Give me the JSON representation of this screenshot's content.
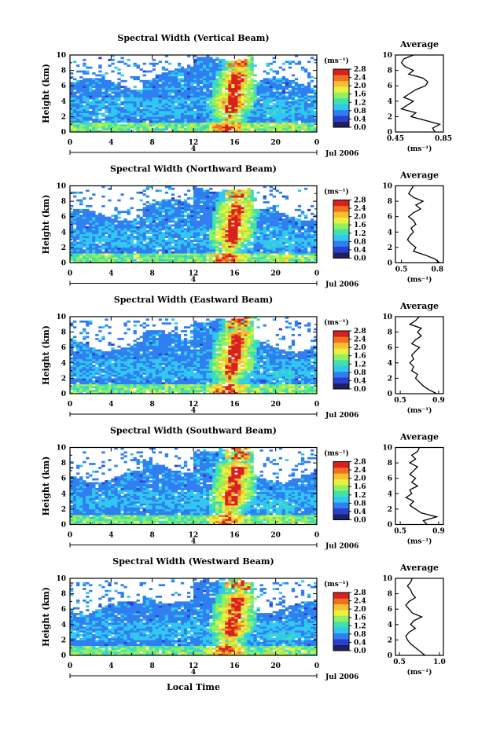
{
  "chart_data": {
    "type": "heatmap",
    "x_label": "Local Time",
    "x_ticks": [
      "0",
      "4",
      "8",
      "12",
      "16",
      "20",
      "0"
    ],
    "x_range": [
      0,
      24
    ],
    "day_marker": "4",
    "date_label": "Jul 2006",
    "y_label": "Height (km)",
    "y_ticks": [
      "0",
      "2",
      "4",
      "6",
      "8",
      "10"
    ],
    "y_range": [
      0,
      10
    ],
    "colorbar": {
      "unit": "(ms⁻¹)",
      "ticks": [
        "2.8",
        "2.4",
        "2.0",
        "1.6",
        "1.2",
        "0.8",
        "0.4",
        "0.0"
      ],
      "range": [
        0,
        2.8
      ],
      "colors": [
        "#202060",
        "#2a3fd0",
        "#2f7ff0",
        "#30c8f0",
        "#40e0b0",
        "#90f060",
        "#e8f040",
        "#f8c030",
        "#f07020",
        "#d82020"
      ]
    },
    "profile": {
      "title": "Average",
      "x_label": "(ms⁻¹)",
      "y_ticks": [
        "0",
        "2",
        "4",
        "6",
        "8",
        "10"
      ]
    },
    "panels": [
      {
        "title": "Spectral Width (Vertical Beam)",
        "profile_xticks": [
          "0.45",
          "0.85"
        ],
        "profile_xrange": [
          0.45,
          0.85
        ],
        "profile": [
          0.78,
          0.76,
          0.82,
          0.7,
          0.58,
          0.62,
          0.5,
          0.55,
          0.6,
          0.52,
          0.57,
          0.62,
          0.7,
          0.72,
          0.68,
          0.56,
          0.6,
          0.53,
          0.5,
          0.52,
          0.6
        ]
      },
      {
        "title": "Spectral Width (Northward Beam)",
        "profile_xticks": [
          "0.5",
          "0.8"
        ],
        "profile_xrange": [
          0.45,
          0.85
        ],
        "profile": [
          0.82,
          0.78,
          0.7,
          0.6,
          0.62,
          0.58,
          0.55,
          0.57,
          0.6,
          0.58,
          0.62,
          0.6,
          0.56,
          0.6,
          0.66,
          0.62,
          0.68,
          0.6,
          0.56,
          0.58,
          0.6
        ]
      },
      {
        "title": "Spectral Width (Eastward Beam)",
        "profile_xticks": [
          "0.5",
          "0.9"
        ],
        "profile_xrange": [
          0.45,
          0.95
        ],
        "profile": [
          0.88,
          0.8,
          0.74,
          0.7,
          0.66,
          0.68,
          0.62,
          0.64,
          0.6,
          0.64,
          0.62,
          0.66,
          0.7,
          0.62,
          0.66,
          0.72,
          0.68,
          0.72,
          0.6,
          0.66,
          0.7
        ]
      },
      {
        "title": "Spectral Width (Southward Beam)",
        "profile_xticks": [
          "0.5",
          "0.9"
        ],
        "profile_xrange": [
          0.45,
          0.95
        ],
        "profile": [
          0.78,
          0.74,
          0.88,
          0.72,
          0.66,
          0.6,
          0.64,
          0.56,
          0.62,
          0.6,
          0.68,
          0.62,
          0.66,
          0.6,
          0.64,
          0.68,
          0.6,
          0.66,
          0.62,
          0.68,
          0.7
        ]
      },
      {
        "title": "Spectral Width (Westward Beam)",
        "profile_xticks": [
          "0.5",
          "1.0"
        ],
        "profile_xrange": [
          0.45,
          1.05
        ],
        "profile": [
          0.82,
          0.76,
          0.7,
          0.64,
          0.6,
          0.58,
          0.62,
          0.7,
          0.64,
          0.68,
          0.78,
          0.66,
          0.62,
          0.58,
          0.62,
          0.7,
          0.66,
          0.64,
          0.6,
          0.64,
          0.66
        ]
      }
    ]
  }
}
